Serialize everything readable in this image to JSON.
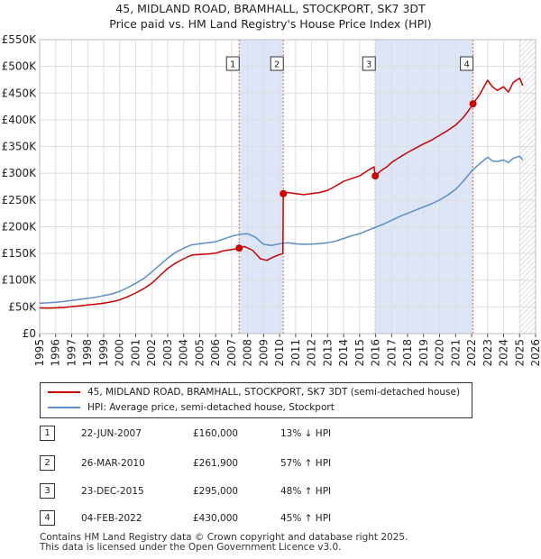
{
  "title_line1": "45, MIDLAND ROAD, BRAMHALL, STOCKPORT, SK7 3DT",
  "title_line2": "Price paid vs. HM Land Registry's House Price Index (HPI)",
  "chart_data": {
    "type": "line",
    "ylim": [
      0,
      550000
    ],
    "xlim": [
      1995,
      2026
    ],
    "y_ticks": [
      {
        "value": 0,
        "label": "£0"
      },
      {
        "value": 50000,
        "label": "£50K"
      },
      {
        "value": 100000,
        "label": "£100K"
      },
      {
        "value": 150000,
        "label": "£150K"
      },
      {
        "value": 200000,
        "label": "£200K"
      },
      {
        "value": 250000,
        "label": "£250K"
      },
      {
        "value": 300000,
        "label": "£300K"
      },
      {
        "value": 350000,
        "label": "£350K"
      },
      {
        "value": 400000,
        "label": "£400K"
      },
      {
        "value": 450000,
        "label": "£450K"
      },
      {
        "value": 500000,
        "label": "£500K"
      },
      {
        "value": 550000,
        "label": "£550K"
      }
    ],
    "x_ticks": [
      "1995",
      "1996",
      "1997",
      "1998",
      "1999",
      "2000",
      "2001",
      "2002",
      "2003",
      "2004",
      "2005",
      "2006",
      "2007",
      "2008",
      "2009",
      "2010",
      "2011",
      "2012",
      "2013",
      "2014",
      "2015",
      "2016",
      "2017",
      "2018",
      "2019",
      "2020",
      "2021",
      "2022",
      "2023",
      "2024",
      "2025",
      "2026"
    ],
    "colors": {
      "property": "#cc0000",
      "hpi": "#5b8fc9",
      "shade": "#dde6f7",
      "vline": "#e06060"
    },
    "shaded_periods": [
      [
        2007.47,
        2010.23
      ],
      [
        2015.98,
        2022.09
      ]
    ],
    "future_hatch_from": 2025.0,
    "series": [
      {
        "name": "45, MIDLAND ROAD, BRAMHALL, STOCKPORT, SK7 3DT (semi-detached house)",
        "x": [
          1995.0,
          1995.5,
          1996.0,
          1996.5,
          1997.0,
          1997.5,
          1998.0,
          1998.5,
          1999.0,
          1999.5,
          2000.0,
          2000.5,
          2001.0,
          2001.5,
          2002.0,
          2002.5,
          2003.0,
          2003.5,
          2004.0,
          2004.5,
          2005.0,
          2005.5,
          2006.0,
          2006.5,
          2007.0,
          2007.47,
          2007.8,
          2008.3,
          2008.8,
          2009.2,
          2009.6,
          2010.0,
          2010.2,
          2010.23,
          2010.5,
          2011.0,
          2011.5,
          2012.0,
          2012.5,
          2013.0,
          2013.5,
          2014.0,
          2014.5,
          2015.0,
          2015.5,
          2015.9,
          2015.98,
          2016.3,
          2016.7,
          2017.0,
          2017.5,
          2018.0,
          2018.5,
          2019.0,
          2019.5,
          2020.0,
          2020.5,
          2021.0,
          2021.5,
          2022.0,
          2022.09,
          2022.5,
          2023.0,
          2023.3,
          2023.6,
          2024.0,
          2024.3,
          2024.6,
          2025.0,
          2025.2
        ],
        "values": [
          48000,
          47500,
          48000,
          49000,
          50500,
          52000,
          53500,
          55000,
          57000,
          59500,
          63000,
          69000,
          76000,
          84000,
          94000,
          108000,
          122000,
          132000,
          140000,
          147000,
          148000,
          149000,
          150500,
          155000,
          157000,
          160000,
          163000,
          156000,
          140000,
          137000,
          143000,
          148000,
          150000,
          261900,
          264000,
          262000,
          260000,
          262000,
          264000,
          268000,
          276000,
          285000,
          290000,
          295000,
          305000,
          312000,
          295000,
          304000,
          312000,
          320000,
          330000,
          339000,
          347000,
          355000,
          362000,
          371000,
          380000,
          390000,
          405000,
          425000,
          430000,
          447000,
          474000,
          462000,
          455000,
          462000,
          452000,
          470000,
          478000,
          464000
        ]
      },
      {
        "name": "HPI: Average price, semi-detached house, Stockport",
        "x": [
          1995.0,
          1995.5,
          1996.0,
          1996.5,
          1997.0,
          1997.5,
          1998.0,
          1998.5,
          1999.0,
          1999.5,
          2000.0,
          2000.5,
          2001.0,
          2001.5,
          2002.0,
          2002.5,
          2003.0,
          2003.5,
          2004.0,
          2004.5,
          2005.0,
          2005.5,
          2006.0,
          2006.5,
          2007.0,
          2007.5,
          2008.0,
          2008.5,
          2009.0,
          2009.5,
          2010.0,
          2010.5,
          2011.0,
          2011.5,
          2012.0,
          2012.5,
          2013.0,
          2013.5,
          2014.0,
          2014.5,
          2015.0,
          2015.5,
          2016.0,
          2016.5,
          2017.0,
          2017.5,
          2018.0,
          2018.5,
          2019.0,
          2019.5,
          2020.0,
          2020.5,
          2021.0,
          2021.5,
          2022.0,
          2022.5,
          2023.0,
          2023.3,
          2023.6,
          2024.0,
          2024.3,
          2024.6,
          2025.0,
          2025.2
        ],
        "values": [
          57000,
          57500,
          58500,
          60000,
          62000,
          64000,
          66000,
          68000,
          71000,
          74000,
          79000,
          86000,
          94000,
          103000,
          115000,
          128000,
          141000,
          152000,
          160000,
          166000,
          168000,
          170000,
          172000,
          177000,
          182000,
          186000,
          187000,
          180000,
          167000,
          165000,
          168000,
          170000,
          168000,
          167000,
          167500,
          168500,
          170000,
          173000,
          178000,
          183000,
          187000,
          193000,
          199000,
          205000,
          212000,
          219000,
          225000,
          231000,
          237000,
          243000,
          250000,
          259000,
          270000,
          286000,
          304000,
          318000,
          330000,
          323000,
          322000,
          325000,
          320000,
          328000,
          332000,
          325000
        ]
      }
    ],
    "sales": [
      {
        "n": "1",
        "x": 2007.47,
        "value": 160000
      },
      {
        "n": "2",
        "x": 2010.23,
        "value": 261900
      },
      {
        "n": "3",
        "x": 2015.98,
        "value": 295000
      },
      {
        "n": "4",
        "x": 2022.09,
        "value": 430000
      }
    ]
  },
  "legend": {
    "property_label": "45, MIDLAND ROAD, BRAMHALL, STOCKPORT, SK7 3DT (semi-detached house)",
    "hpi_label": "HPI: Average price, semi-detached house, Stockport"
  },
  "sales_table": [
    {
      "num": "1",
      "date": "22-JUN-2007",
      "price": "£160,000",
      "hpi": "13% ↓ HPI"
    },
    {
      "num": "2",
      "date": "26-MAR-2010",
      "price": "£261,900",
      "hpi": "57% ↑ HPI"
    },
    {
      "num": "3",
      "date": "23-DEC-2015",
      "price": "£295,000",
      "hpi": "48% ↑ HPI"
    },
    {
      "num": "4",
      "date": "04-FEB-2022",
      "price": "£430,000",
      "hpi": "45% ↑ HPI"
    }
  ],
  "footer_line1": "Contains HM Land Registry data © Crown copyright and database right 2025.",
  "footer_line2": "This data is licensed under the Open Government Licence v3.0."
}
